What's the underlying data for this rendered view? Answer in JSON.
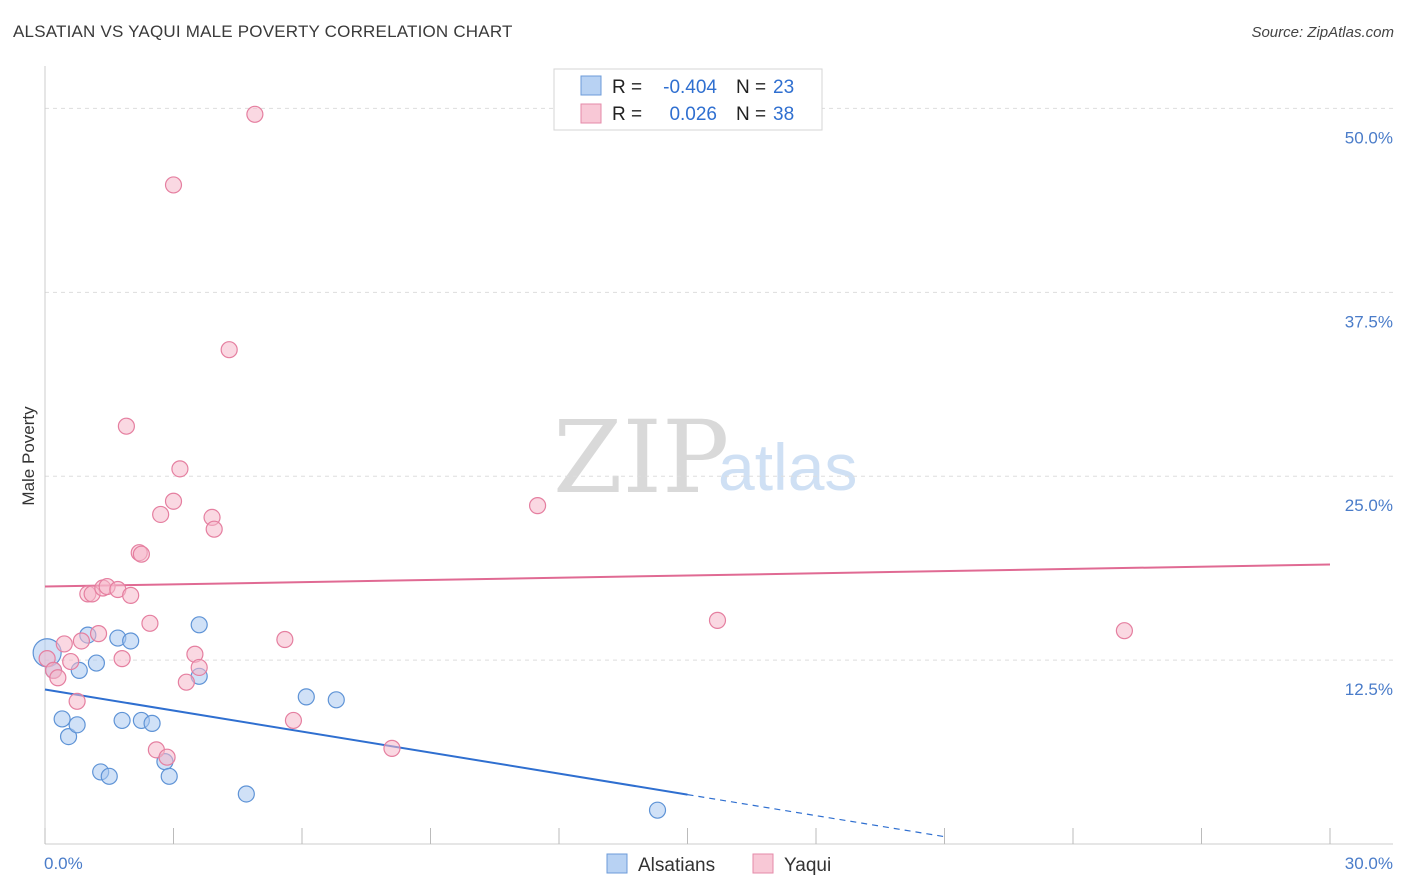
{
  "header": {
    "title": "ALSATIAN VS YAQUI MALE POVERTY CORRELATION CHART",
    "source": "Source: ZipAtlas.com"
  },
  "watermark": {
    "zip": "ZIP",
    "atlas": "atlas"
  },
  "colors": {
    "blue": "#a9c8f0",
    "blue_stroke": "#5e93d6",
    "blue_line": "#2f6fd0",
    "pink": "#f5b8cb",
    "pink_stroke": "#e57fa0",
    "pink_line": "#e06a93",
    "grid": "#dddddd",
    "tick_label": "#4a7cc9"
  },
  "legend": {
    "rows": [
      {
        "r_label": "R =",
        "r_value": "-0.404",
        "n_label": "N =",
        "n_value": "23",
        "series": "Alsatians"
      },
      {
        "r_label": "R =",
        "r_value": "0.026",
        "n_label": "N =",
        "n_value": "38",
        "series": "Yaqui"
      }
    ]
  },
  "bottom_legend": {
    "items": [
      "Alsatians",
      "Yaqui"
    ]
  },
  "chart_data": {
    "type": "scatter",
    "title": "ALSATIAN VS YAQUI MALE POVERTY CORRELATION CHART",
    "xlabel": "",
    "ylabel": "Male Poverty",
    "xlim": [
      0,
      30
    ],
    "ylim": [
      0,
      52
    ],
    "x_tick_labels": [
      "0.0%",
      "30.0%"
    ],
    "y_ticks": [
      12.5,
      25.0,
      37.5,
      50.0
    ],
    "y_tick_labels": [
      "12.5%",
      "25.0%",
      "37.5%",
      "50.0%"
    ],
    "grid": true,
    "series": [
      {
        "name": "Alsatians",
        "r": -0.404,
        "n": 23,
        "points": [
          [
            0.05,
            13.0
          ],
          [
            0.2,
            11.8
          ],
          [
            0.4,
            8.5
          ],
          [
            0.55,
            7.3
          ],
          [
            0.75,
            8.1
          ],
          [
            0.8,
            11.8
          ],
          [
            1.0,
            14.2
          ],
          [
            1.2,
            12.3
          ],
          [
            1.3,
            4.9
          ],
          [
            1.5,
            4.6
          ],
          [
            1.7,
            14.0
          ],
          [
            1.8,
            8.4
          ],
          [
            2.0,
            13.8
          ],
          [
            2.25,
            8.4
          ],
          [
            2.5,
            8.2
          ],
          [
            2.8,
            5.6
          ],
          [
            2.9,
            4.6
          ],
          [
            3.6,
            11.4
          ],
          [
            3.6,
            14.9
          ],
          [
            4.7,
            3.4
          ],
          [
            6.1,
            10.0
          ],
          [
            6.8,
            9.8
          ],
          [
            14.3,
            2.3
          ]
        ],
        "trend": {
          "x0": 0,
          "y0": 10.5,
          "x_solid_end": 15.0,
          "x1": 21.0,
          "y1": 0.5
        }
      },
      {
        "name": "Yaqui",
        "r": 0.026,
        "n": 38,
        "points": [
          [
            0.05,
            12.6
          ],
          [
            0.2,
            11.8
          ],
          [
            0.3,
            11.3
          ],
          [
            0.45,
            13.6
          ],
          [
            0.6,
            12.4
          ],
          [
            0.75,
            9.7
          ],
          [
            0.85,
            13.8
          ],
          [
            1.0,
            17.0
          ],
          [
            1.1,
            17.0
          ],
          [
            1.25,
            14.3
          ],
          [
            1.35,
            17.4
          ],
          [
            1.45,
            17.5
          ],
          [
            1.7,
            17.3
          ],
          [
            1.8,
            12.6
          ],
          [
            1.9,
            28.4
          ],
          [
            2.0,
            16.9
          ],
          [
            2.2,
            19.8
          ],
          [
            2.25,
            19.7
          ],
          [
            2.45,
            15.0
          ],
          [
            2.6,
            6.4
          ],
          [
            2.7,
            22.4
          ],
          [
            2.85,
            5.9
          ],
          [
            3.0,
            23.3
          ],
          [
            3.0,
            44.8
          ],
          [
            3.15,
            25.5
          ],
          [
            3.3,
            11.0
          ],
          [
            3.5,
            12.9
          ],
          [
            3.6,
            12.0
          ],
          [
            3.9,
            22.2
          ],
          [
            3.95,
            21.4
          ],
          [
            4.3,
            33.6
          ],
          [
            4.9,
            49.6
          ],
          [
            5.6,
            13.9
          ],
          [
            5.8,
            8.4
          ],
          [
            8.1,
            6.5
          ],
          [
            11.5,
            23.0
          ],
          [
            15.7,
            15.2
          ],
          [
            25.2,
            14.5
          ]
        ],
        "trend": {
          "x0": 0,
          "y0": 17.5,
          "x1": 30,
          "y1": 19.0
        }
      }
    ]
  }
}
